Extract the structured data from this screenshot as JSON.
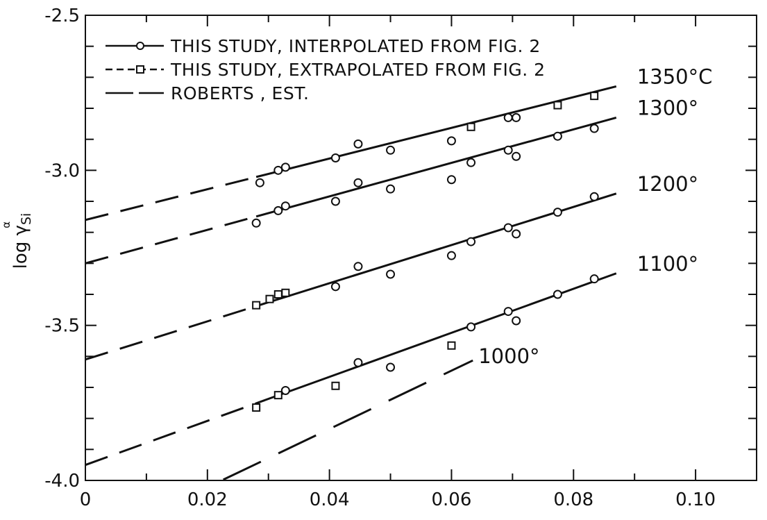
{
  "chart_data": {
    "type": "line",
    "title": "",
    "xlabel": "",
    "ylabel": "log γ",
    "ylabel_subscript": "Si",
    "ylabel_superscript": "α",
    "xlim": [
      0,
      0.11
    ],
    "ylim": [
      -4.0,
      -2.5
    ],
    "grid": false,
    "legend_position": "top-left",
    "x_ticks": [
      0,
      0.02,
      0.04,
      0.06,
      0.08,
      0.1
    ],
    "x_tick_labels": [
      "0",
      "0.02",
      "0.04",
      "0.06",
      "0.08",
      "0.10"
    ],
    "y_ticks": [
      -4.0,
      -3.5,
      -3.0,
      -2.5
    ],
    "y_tick_labels": [
      "-4.0",
      "-3.5",
      "-3.0",
      "-2.5"
    ],
    "legend": [
      {
        "label": "THIS STUDY, INTERPOLATED FROM FIG. 2",
        "marker": "circle",
        "line": "solid"
      },
      {
        "label": "THIS STUDY, EXTRAPOLATED FROM FIG. 2",
        "marker": "square",
        "line": "solid"
      },
      {
        "label": "ROBERTS , EST.",
        "marker": "none",
        "line": "dashed"
      }
    ],
    "series": [
      {
        "name": "1350°C",
        "fit": {
          "intercept": -3.16,
          "slope": 4.95,
          "solid_from": 0.028,
          "solid_to": 0.087
        },
        "circles": [
          [
            0.0286,
            -3.04
          ],
          [
            0.0316,
            -3.0
          ],
          [
            0.0328,
            -2.99
          ],
          [
            0.041,
            -2.96
          ],
          [
            0.0447,
            -2.915
          ],
          [
            0.05,
            -2.935
          ],
          [
            0.06,
            -2.905
          ],
          [
            0.0693,
            -2.83
          ],
          [
            0.0706,
            -2.83
          ]
        ],
        "squares": [
          [
            0.0632,
            -2.86
          ],
          [
            0.0774,
            -2.79
          ],
          [
            0.0834,
            -2.76
          ]
        ]
      },
      {
        "name": "1300°",
        "fit": {
          "intercept": -3.3,
          "slope": 5.4,
          "solid_from": 0.028,
          "solid_to": 0.087
        },
        "circles": [
          [
            0.028,
            -3.17
          ],
          [
            0.0316,
            -3.13
          ],
          [
            0.0328,
            -3.115
          ],
          [
            0.041,
            -3.1
          ],
          [
            0.0447,
            -3.04
          ],
          [
            0.05,
            -3.06
          ],
          [
            0.06,
            -3.03
          ],
          [
            0.0632,
            -2.975
          ],
          [
            0.0693,
            -2.935
          ],
          [
            0.0706,
            -2.955
          ],
          [
            0.0774,
            -2.89
          ],
          [
            0.0834,
            -2.865
          ]
        ],
        "squares": []
      },
      {
        "name": "1200°",
        "fit": {
          "intercept": -3.61,
          "slope": 6.15,
          "solid_from": 0.028,
          "solid_to": 0.087
        },
        "circles": [
          [
            0.041,
            -3.375
          ],
          [
            0.0447,
            -3.31
          ],
          [
            0.05,
            -3.335
          ],
          [
            0.06,
            -3.275
          ],
          [
            0.0632,
            -3.23
          ],
          [
            0.0693,
            -3.185
          ],
          [
            0.0706,
            -3.205
          ],
          [
            0.0774,
            -3.135
          ],
          [
            0.0834,
            -3.085
          ]
        ],
        "squares": [
          [
            0.028,
            -3.435
          ],
          [
            0.0302,
            -3.415
          ],
          [
            0.0316,
            -3.4
          ],
          [
            0.0328,
            -3.395
          ]
        ]
      },
      {
        "name": "1100°",
        "fit": {
          "intercept": -3.95,
          "slope": 7.1,
          "solid_from": 0.028,
          "solid_to": 0.087
        },
        "circles": [
          [
            0.0328,
            -3.71
          ],
          [
            0.0447,
            -3.62
          ],
          [
            0.05,
            -3.635
          ],
          [
            0.0632,
            -3.505
          ],
          [
            0.0693,
            -3.455
          ],
          [
            0.0706,
            -3.485
          ],
          [
            0.0774,
            -3.4
          ],
          [
            0.0834,
            -3.35
          ]
        ],
        "squares": [
          [
            0.028,
            -3.765
          ],
          [
            0.0316,
            -3.725
          ],
          [
            0.041,
            -3.695
          ],
          [
            0.06,
            -3.565
          ]
        ]
      },
      {
        "name": "1000°",
        "fit": {
          "intercept": -4.21,
          "slope": 9.4,
          "solid_from": null,
          "solid_to": null,
          "dashed_from": 0.0226,
          "dashed_to": 0.0635
        },
        "circles": [],
        "squares": []
      }
    ]
  }
}
